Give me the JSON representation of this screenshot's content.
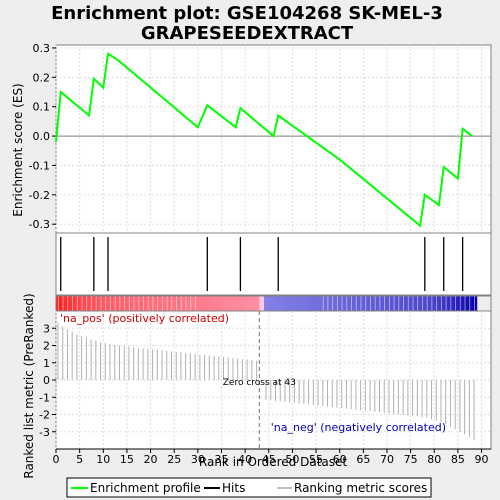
{
  "chart_data": {
    "type": "line",
    "title_line1": "Enrichment plot: GSE104268 SK-MEL-3",
    "title_line2": "GRAPESEEDEXTRACT",
    "xlabel": "Rank in Ordered Dataset",
    "es_ylabel": "Enrichment score (ES)",
    "metric_ylabel": "Ranked list metric (PreRanked)",
    "xlim": [
      0,
      92
    ],
    "x_ticks": [
      0,
      5,
      10,
      15,
      20,
      25,
      30,
      35,
      40,
      45,
      50,
      55,
      60,
      65,
      70,
      75,
      80,
      85,
      90
    ],
    "es_ylim": [
      -0.33,
      0.31
    ],
    "es_ticks": [
      -0.3,
      -0.2,
      -0.1,
      0.0,
      0.1,
      0.2,
      0.3
    ],
    "es_tick_labels": [
      "-0.3",
      "-0.2",
      "-0.1",
      "0.0",
      "0.1",
      "0.2",
      "0.3"
    ],
    "metric_ylim": [
      -4,
      4
    ],
    "metric_ticks": [
      -3,
      -2,
      -1,
      0,
      1,
      2,
      3
    ],
    "enrichment_profile": {
      "name": "Enrichment profile",
      "color": "#00ff00",
      "points": [
        [
          0,
          -0.02
        ],
        [
          1,
          0.15
        ],
        [
          7,
          0.07
        ],
        [
          8,
          0.195
        ],
        [
          10,
          0.165
        ],
        [
          11,
          0.28
        ],
        [
          13,
          0.26
        ],
        [
          30,
          0.03
        ],
        [
          32,
          0.105
        ],
        [
          38,
          0.03
        ],
        [
          39,
          0.095
        ],
        [
          46,
          0.0
        ],
        [
          47,
          0.07
        ],
        [
          60,
          -0.08
        ],
        [
          77,
          -0.305
        ],
        [
          78,
          -0.2
        ],
        [
          81,
          -0.235
        ],
        [
          82,
          -0.105
        ],
        [
          85,
          -0.145
        ],
        [
          86,
          0.025
        ],
        [
          88,
          0.0
        ]
      ]
    },
    "hits": {
      "name": "Hits",
      "color": "#000000",
      "ranks": [
        1,
        8,
        11,
        32,
        39,
        47,
        78,
        82,
        86
      ]
    },
    "ranking_metric": {
      "name": "Ranking metric scores",
      "color": "#c0c0c0",
      "ranks": [
        0,
        1,
        2,
        3,
        4,
        5,
        6,
        7,
        8,
        9,
        10,
        11,
        12,
        13,
        14,
        15,
        16,
        17,
        18,
        19,
        20,
        21,
        22,
        23,
        24,
        25,
        26,
        27,
        28,
        29,
        30,
        31,
        32,
        33,
        34,
        35,
        36,
        37,
        38,
        39,
        40,
        41,
        42,
        43,
        44,
        45,
        46,
        47,
        48,
        49,
        50,
        51,
        52,
        53,
        54,
        55,
        56,
        57,
        58,
        59,
        60,
        61,
        62,
        63,
        64,
        65,
        66,
        67,
        68,
        69,
        70,
        71,
        72,
        73,
        74,
        75,
        76,
        77,
        78,
        79,
        80,
        81,
        82,
        83,
        84,
        85,
        86,
        87,
        88
      ],
      "values": [
        3.3,
        3.1,
        2.95,
        2.8,
        2.65,
        2.55,
        2.45,
        2.35,
        2.3,
        2.2,
        2.15,
        2.1,
        2.05,
        2.0,
        1.97,
        1.94,
        1.9,
        1.87,
        1.84,
        1.81,
        1.78,
        1.75,
        1.72,
        1.69,
        1.66,
        1.63,
        1.6,
        1.57,
        1.54,
        1.51,
        1.48,
        1.45,
        1.42,
        1.39,
        1.36,
        1.33,
        1.3,
        1.27,
        1.24,
        1.21,
        1.18,
        1.15,
        1.12,
        0.0,
        -1.15,
        -1.18,
        -1.21,
        -1.24,
        -1.27,
        -1.3,
        -1.33,
        -1.36,
        -1.39,
        -1.42,
        -1.45,
        -1.48,
        -1.51,
        -1.54,
        -1.57,
        -1.6,
        -1.63,
        -1.66,
        -1.69,
        -1.72,
        -1.75,
        -1.78,
        -1.81,
        -1.84,
        -1.87,
        -1.9,
        -1.93,
        -1.96,
        -1.99,
        -2.02,
        -2.05,
        -2.08,
        -2.11,
        -2.15,
        -2.2,
        -2.27,
        -2.35,
        -2.45,
        -2.55,
        -2.7,
        -2.85,
        -3.0,
        -3.15,
        -3.3,
        -3.5
      ]
    },
    "zero_cross_label": "Zero cross at 43",
    "zero_cross_rank": 43,
    "pos_label": "'na_pos' (positively correlated)",
    "neg_label": "'na_neg' (negatively correlated)",
    "pos_label_color": "#cc0000",
    "neg_label_color": "#0000bb",
    "legend": [
      {
        "name": "Enrichment profile",
        "color": "#00ff00"
      },
      {
        "name": "Hits",
        "color": "#000000"
      },
      {
        "name": "Ranking metric scores",
        "color": "#c0c0c0"
      }
    ],
    "grid": true
  }
}
